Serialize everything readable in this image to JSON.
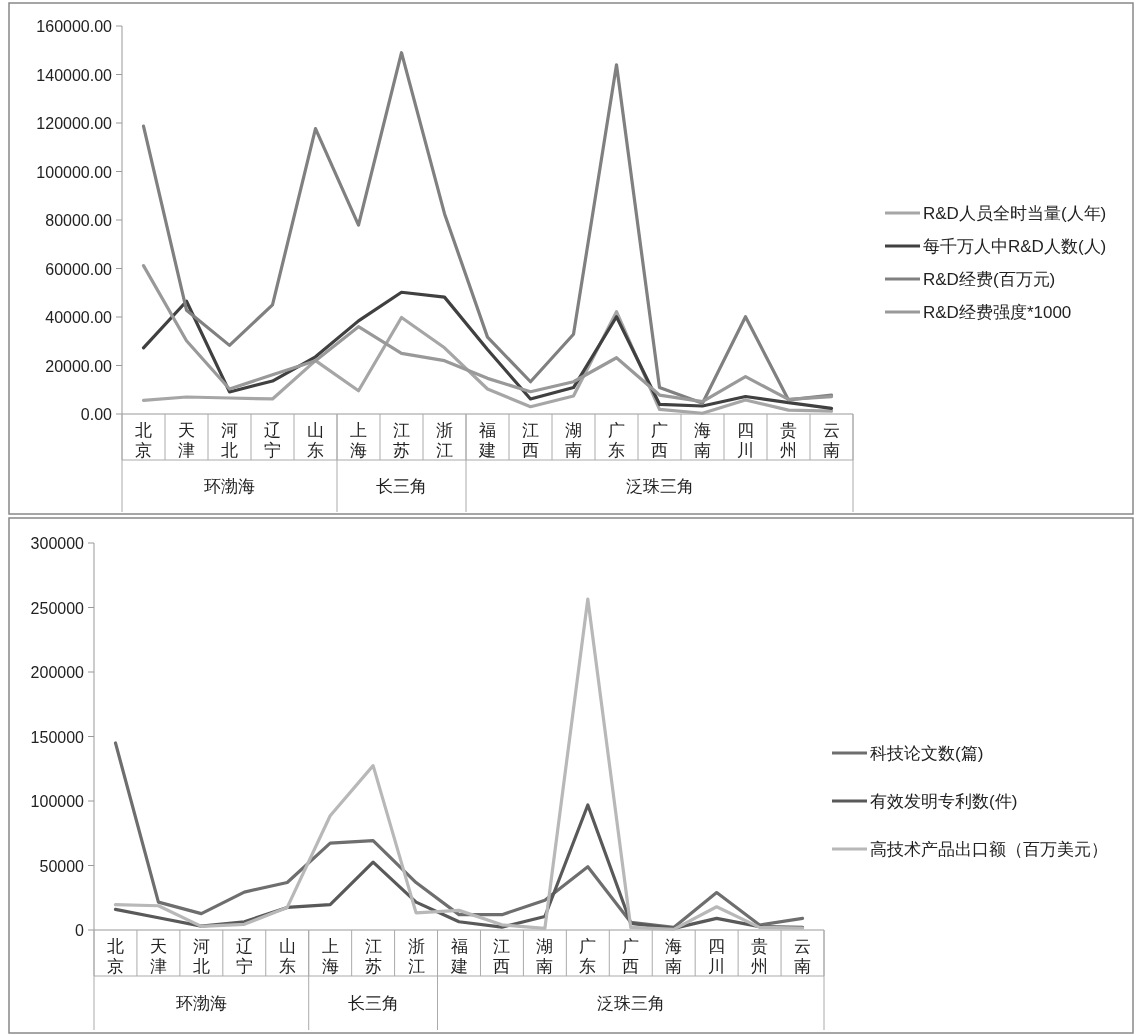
{
  "chart_data": [
    {
      "type": "line",
      "categories": [
        "北京",
        "天津",
        "河北",
        "辽宁",
        "山东",
        "上海",
        "江苏",
        "浙江",
        "福建",
        "江西",
        "湖南",
        "广东",
        "广西",
        "海南",
        "四川",
        "贵州",
        "云南"
      ],
      "ylim": [
        0,
        160000
      ],
      "yticks": [
        {
          "value": 0,
          "label": "0.00"
        },
        {
          "value": 20000,
          "label": "20000.00"
        },
        {
          "value": 40000,
          "label": "40000.00"
        },
        {
          "value": 60000,
          "label": "60000.00"
        },
        {
          "value": 80000,
          "label": "80000.00"
        },
        {
          "value": 100000,
          "label": "100000.00"
        },
        {
          "value": 120000,
          "label": "120000.00"
        },
        {
          "value": 140000,
          "label": "140000.00"
        },
        {
          "value": 160000,
          "label": "160000.00"
        }
      ],
      "legend": "right",
      "grid": false,
      "series": [
        {
          "name": "R&D人员全时当量(人年)",
          "color": "#a6a6a6",
          "values": [
            5600,
            7000,
            6600,
            6200,
            22000,
            9600,
            39800,
            27300,
            10300,
            3000,
            7400,
            42200,
            1900,
            300,
            5800,
            1600,
            1200
          ]
        },
        {
          "name": "每千万人中R&D人数(人)",
          "color": "#404040",
          "values": [
            27300,
            46500,
            9100,
            13600,
            23600,
            38400,
            50200,
            48200,
            26600,
            6200,
            10900,
            40100,
            4000,
            3300,
            7200,
            4700,
            2300
          ]
        },
        {
          "name": "R&D经费(百万元)",
          "color": "#808080",
          "values": [
            118700,
            42800,
            28300,
            45000,
            117700,
            77900,
            149000,
            82600,
            31700,
            13300,
            32900,
            144000,
            10900,
            4400,
            40100,
            5800,
            7800
          ]
        },
        {
          "name": "R&D经费强度*1000",
          "color": "#999999",
          "values": [
            61200,
            30200,
            10300,
            16200,
            22000,
            36000,
            25000,
            22000,
            14700,
            9200,
            13300,
            23200,
            7800,
            5100,
            15400,
            6000,
            7200
          ]
        }
      ],
      "annotations": [
        "环渤海",
        "长三角",
        "泛珠三角"
      ]
    },
    {
      "type": "line",
      "categories": [
        "北京",
        "天津",
        "河北",
        "辽宁",
        "山东",
        "上海",
        "江苏",
        "浙江",
        "福建",
        "江西",
        "湖南",
        "广东",
        "广西",
        "海南",
        "四川",
        "贵州",
        "云南"
      ],
      "ylim": [
        0,
        300000
      ],
      "yticks": [
        0,
        50000,
        100000,
        150000,
        200000,
        250000,
        300000
      ],
      "legend": "right",
      "grid": false,
      "series": [
        {
          "name": "科技论文数(篇)",
          "color": "#6e6e6e",
          "values": [
            145000,
            21600,
            12700,
            29400,
            36800,
            67300,
            69300,
            36800,
            11900,
            11900,
            23000,
            49000,
            6000,
            2000,
            29000,
            3900,
            9000
          ]
        },
        {
          "name": "有效发明专利数(件)",
          "color": "#595959",
          "values": [
            16000,
            9500,
            3000,
            6400,
            17500,
            19700,
            52600,
            21600,
            6400,
            2200,
            10500,
            96900,
            5200,
            1300,
            9000,
            2600,
            2000
          ]
        },
        {
          "name": "高技术产品出口额（百万美元）",
          "color": "#b8b8b8",
          "values": [
            19700,
            18800,
            2800,
            4400,
            17500,
            88600,
            127400,
            13300,
            15200,
            4000,
            1300,
            256600,
            2000,
            500,
            18000,
            2000,
            1500
          ]
        }
      ],
      "annotations": [
        "环渤海",
        "长三角",
        "泛珠三角"
      ]
    }
  ]
}
